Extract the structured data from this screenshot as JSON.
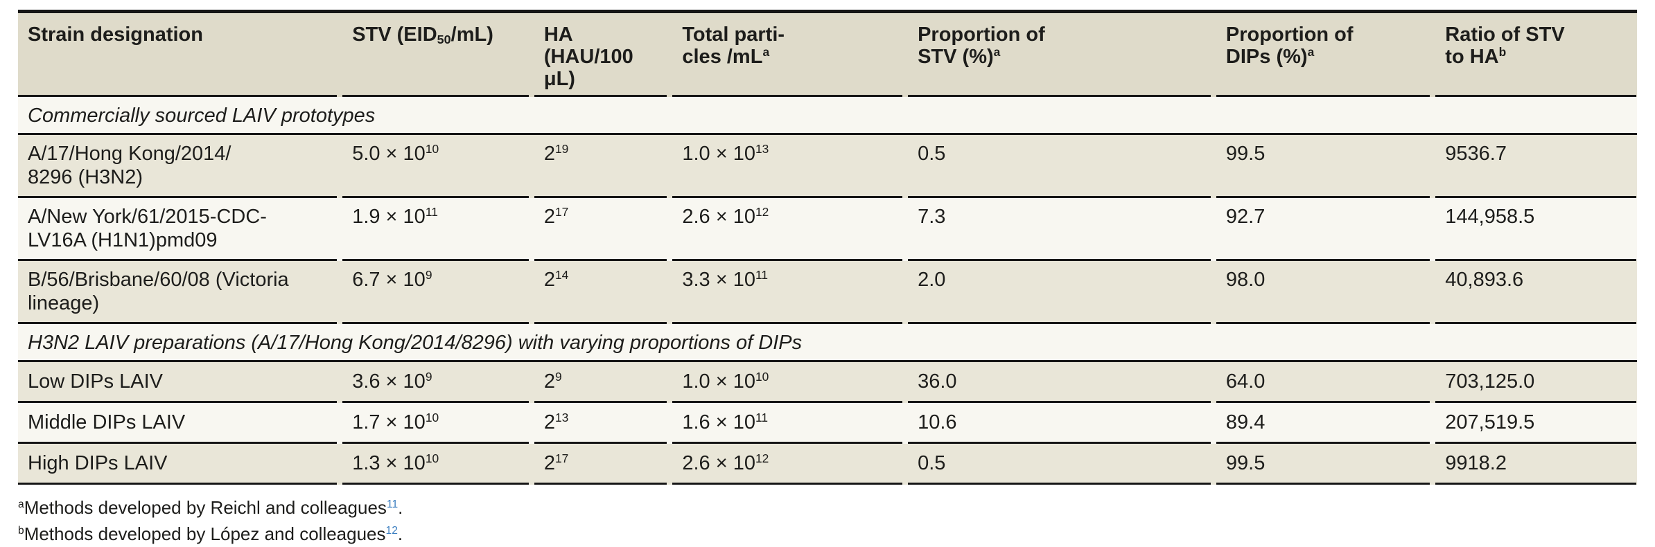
{
  "colors": {
    "header_bg": "#dfdbca",
    "row_beige": "#e9e6d8",
    "row_light": "#f8f7f1",
    "rule": "#161616",
    "text": "#1d1d1b",
    "citation_blue": "#3b7ec0"
  },
  "table": {
    "header": {
      "col1": "Strain designation",
      "col2": {
        "pre": "STV (EID",
        "sub": "50",
        "post": "/mL)"
      },
      "col3": {
        "line1": "HA",
        "line2": "(HAU/100 μL)"
      },
      "col4": {
        "line1": "Total parti-",
        "line2": "cles /mL",
        "sup": "a"
      },
      "col5": {
        "line1": "Proportion of",
        "line2": "STV (%)",
        "sup": "a"
      },
      "col6": {
        "line1": "Proportion of",
        "line2": "DIPs (%)",
        "sup": "a"
      },
      "col7": {
        "line1": "Ratio of STV",
        "line2": "to HA",
        "sup": "b"
      }
    },
    "section1": "Commercially sourced LAIV prototypes",
    "section2": "H3N2 LAIV preparations (A/17/Hong Kong/2014/8296) with varying proportions of DIPs",
    "rows": [
      {
        "strain_lines": [
          "A/17/Hong Kong/2014/",
          "8296 (H3N2)"
        ],
        "stv": {
          "m": "5.0 × 10",
          "e": "10"
        },
        "ha": {
          "m": "2",
          "e": "19"
        },
        "particles": {
          "m": "1.0 × 10",
          "e": "13"
        },
        "prop_stv": "0.5",
        "prop_dips": "99.5",
        "ratio": "9536.7"
      },
      {
        "strain_lines": [
          "A/New York/61/2015-CDC-",
          "LV16A (H1N1)pmd09"
        ],
        "stv": {
          "m": "1.9 × 10",
          "e": "11"
        },
        "ha": {
          "m": "2",
          "e": "17"
        },
        "particles": {
          "m": "2.6 × 10",
          "e": "12"
        },
        "prop_stv": "7.3",
        "prop_dips": "92.7",
        "ratio": "144,958.5"
      },
      {
        "strain_lines": [
          "B/56/Brisbane/60/08 (Victoria",
          "lineage)"
        ],
        "stv": {
          "m": "6.7 × 10",
          "e": "9"
        },
        "ha": {
          "m": "2",
          "e": "14"
        },
        "particles": {
          "m": "3.3 × 10",
          "e": "11"
        },
        "prop_stv": "2.0",
        "prop_dips": "98.0",
        "ratio": "40,893.6"
      },
      {
        "strain_lines": [
          "Low DIPs LAIV"
        ],
        "stv": {
          "m": "3.6 × 10",
          "e": "9"
        },
        "ha": {
          "m": "2",
          "e": "9"
        },
        "particles": {
          "m": "1.0 × 10",
          "e": "10"
        },
        "prop_stv": "36.0",
        "prop_dips": "64.0",
        "ratio": "703,125.0"
      },
      {
        "strain_lines": [
          "Middle DIPs LAIV"
        ],
        "stv": {
          "m": "1.7 × 10",
          "e": "10"
        },
        "ha": {
          "m": "2",
          "e": "13"
        },
        "particles": {
          "m": "1.6 × 10",
          "e": "11"
        },
        "prop_stv": "10.6",
        "prop_dips": "89.4",
        "ratio": "207,519.5"
      },
      {
        "strain_lines": [
          "High DIPs LAIV"
        ],
        "stv": {
          "m": "1.3 × 10",
          "e": "10"
        },
        "ha": {
          "m": "2",
          "e": "17"
        },
        "particles": {
          "m": "2.6 × 10",
          "e": "12"
        },
        "prop_stv": "0.5",
        "prop_dips": "99.5",
        "ratio": "9918.2"
      }
    ]
  },
  "footnotes": [
    {
      "marker": "a",
      "text": "Methods developed by Reichl and colleagues",
      "ref": "11",
      "suffix": "."
    },
    {
      "marker": "b",
      "text": "Methods developed by López and colleagues",
      "ref": "12",
      "suffix": "."
    }
  ]
}
